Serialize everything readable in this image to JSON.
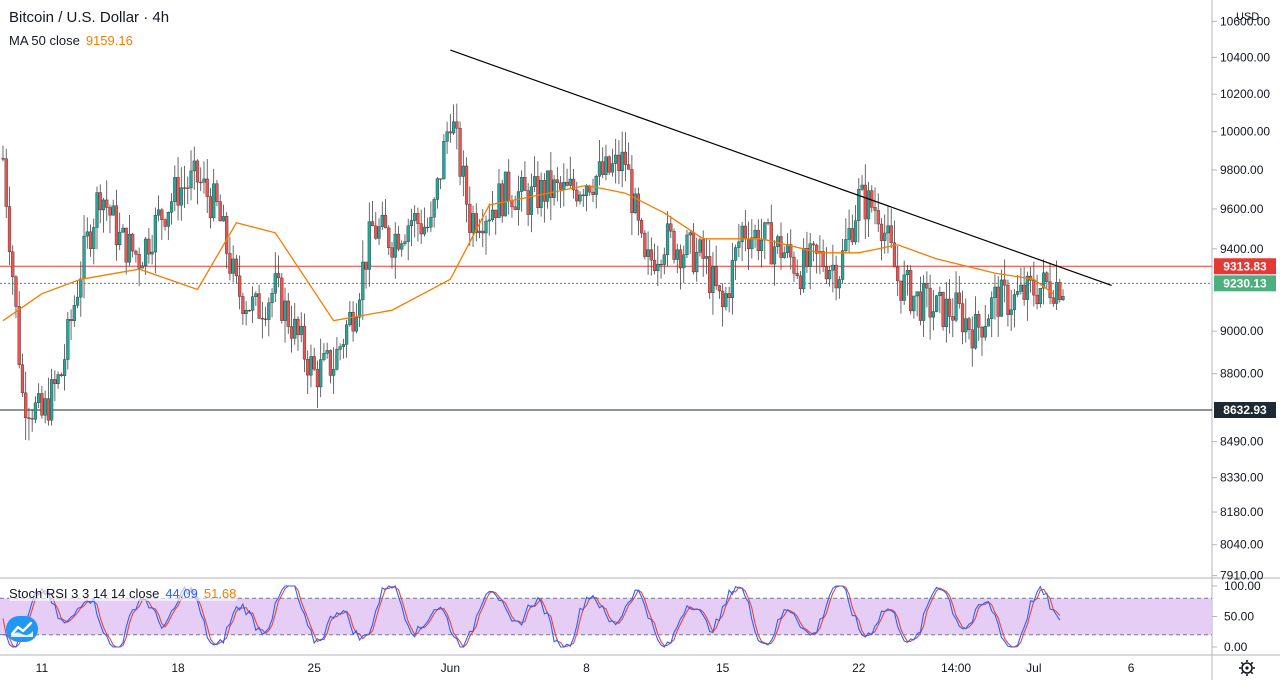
{
  "header": {
    "symbol": "Bitcoin / U.S. Dollar",
    "separator": "·",
    "interval": "4h",
    "ma_label": "MA 50 close",
    "ma_value": "9159.16",
    "stoch_label": "Stoch RSI 3 3 14 14 close",
    "stoch_k_value": "44.09",
    "stoch_d_value": "51.68"
  },
  "axis": {
    "currency": "USD",
    "price_ticks": [
      "10600.00",
      "10400.00",
      "10200.00",
      "10000.00",
      "9800.00",
      "9600.00",
      "9400.00",
      "9000.00",
      "8800.00",
      "8490.00",
      "8330.00",
      "8180.00",
      "8040.00",
      "7910.00"
    ],
    "rsi_ticks": [
      "100.00",
      "50.00",
      "0.00"
    ],
    "time_ticks": [
      "11",
      "18",
      "25",
      "Jun",
      "8",
      "15",
      "22",
      "14:00",
      "Jul",
      "6"
    ]
  },
  "levels": {
    "resistance": "9313.83",
    "current": "9230.13",
    "support": "8632.93"
  },
  "colors": {
    "up": "#26a69a",
    "down": "#ef5350",
    "ma": "#f57c00",
    "resistance": "#e53935",
    "support": "#1e2a33",
    "current": "#4caf7d",
    "rsi_k": "#2962ff",
    "rsi_d": "#e8453c",
    "rsi_band": "#e1c4f5"
  },
  "icons": [
    "tradingview-logo-icon",
    "settings-gear-icon"
  ],
  "chart_data": {
    "type": "candlestick",
    "title": "Bitcoin / U.S. Dollar · 4h",
    "ylabel": "USD",
    "y_scale": "log",
    "ylim": [
      7900,
      10720
    ],
    "x_range": [
      "May 9",
      "Jul 7"
    ],
    "legend": "top-left",
    "close_path": [
      [
        "May 9",
        9860
      ],
      [
        "May 10",
        8700
      ],
      [
        "May 11",
        8600
      ],
      [
        "May 12",
        8800
      ],
      [
        "May 13",
        9300
      ],
      [
        "May 14",
        9700
      ],
      [
        "May 15",
        9450
      ],
      [
        "May 16",
        9360
      ],
      [
        "May 17",
        9550
      ],
      [
        "May 18",
        9700
      ],
      [
        "May 19",
        9750
      ],
      [
        "May 20",
        9600
      ],
      [
        "May 21",
        9200
      ],
      [
        "May 22",
        9100
      ],
      [
        "May 23",
        9200
      ],
      [
        "May 24",
        9000
      ],
      [
        "May 25",
        8800
      ],
      [
        "May 26",
        8850
      ],
      [
        "May 27",
        9100
      ],
      [
        "May 28",
        9500
      ],
      [
        "May 29",
        9450
      ],
      [
        "May 30",
        9550
      ],
      [
        "May 31",
        9500
      ],
      [
        "Jun 1",
        10100
      ],
      [
        "Jun 2",
        9550
      ],
      [
        "Jun 3",
        9600
      ],
      [
        "Jun 4",
        9700
      ],
      [
        "Jun 5",
        9650
      ],
      [
        "Jun 6",
        9700
      ],
      [
        "Jun 7",
        9680
      ],
      [
        "Jun 8",
        9750
      ],
      [
        "Jun 9",
        9780
      ],
      [
        "Jun 10",
        9850
      ],
      [
        "Jun 11",
        9300
      ],
      [
        "Jun 12",
        9450
      ],
      [
        "Jun 13",
        9400
      ],
      [
        "Jun 14",
        9350
      ],
      [
        "Jun 15",
        9100
      ],
      [
        "Jun 16",
        9500
      ],
      [
        "Jun 17",
        9450
      ],
      [
        "Jun 18",
        9400
      ],
      [
        "Jun 19",
        9300
      ],
      [
        "Jun 20",
        9350
      ],
      [
        "Jun 21",
        9300
      ],
      [
        "Jun 22",
        9650
      ],
      [
        "Jun 23",
        9600
      ],
      [
        "Jun 24",
        9250
      ],
      [
        "Jun 25",
        9150
      ],
      [
        "Jun 26",
        9100
      ],
      [
        "Jun 27",
        9100
      ],
      [
        "Jun 28",
        9000
      ],
      [
        "Jun 29",
        9150
      ],
      [
        "Jun 30",
        9150
      ],
      [
        "Jul 1",
        9200
      ],
      [
        "Jul 2",
        9230
      ]
    ],
    "ma50_path": [
      [
        "May 9",
        9050
      ],
      [
        "May 11",
        9180
      ],
      [
        "May 13",
        9250
      ],
      [
        "May 16",
        9300
      ],
      [
        "May 19",
        9200
      ],
      [
        "May 21",
        9530
      ],
      [
        "May 23",
        9480
      ],
      [
        "May 26",
        9050
      ],
      [
        "May 29",
        9100
      ],
      [
        "Jun 1",
        9250
      ],
      [
        "Jun 3",
        9620
      ],
      [
        "Jun 5",
        9660
      ],
      [
        "Jun 8",
        9720
      ],
      [
        "Jun 10",
        9680
      ],
      [
        "Jun 12",
        9580
      ],
      [
        "Jun 14",
        9450
      ],
      [
        "Jun 17",
        9450
      ],
      [
        "Jun 20",
        9380
      ],
      [
        "Jun 22",
        9380
      ],
      [
        "Jun 24",
        9420
      ],
      [
        "Jun 26",
        9350
      ],
      [
        "Jun 29",
        9280
      ],
      [
        "Jul 1",
        9250
      ],
      [
        "Jul 2",
        9180
      ]
    ],
    "trendline": {
      "from": [
        "Jun 1",
        10440
      ],
      "to": [
        "Jul 5",
        9220
      ]
    },
    "horizontal_levels": [
      {
        "name": "resistance",
        "value": 9313.83
      },
      {
        "name": "current",
        "value": 9230.13
      },
      {
        "name": "support",
        "value": 8632.93
      }
    ],
    "stoch_rsi": {
      "ylim": [
        0,
        100
      ],
      "bands": [
        20,
        80
      ],
      "k_last": 44.09,
      "d_last": 51.68
    }
  }
}
